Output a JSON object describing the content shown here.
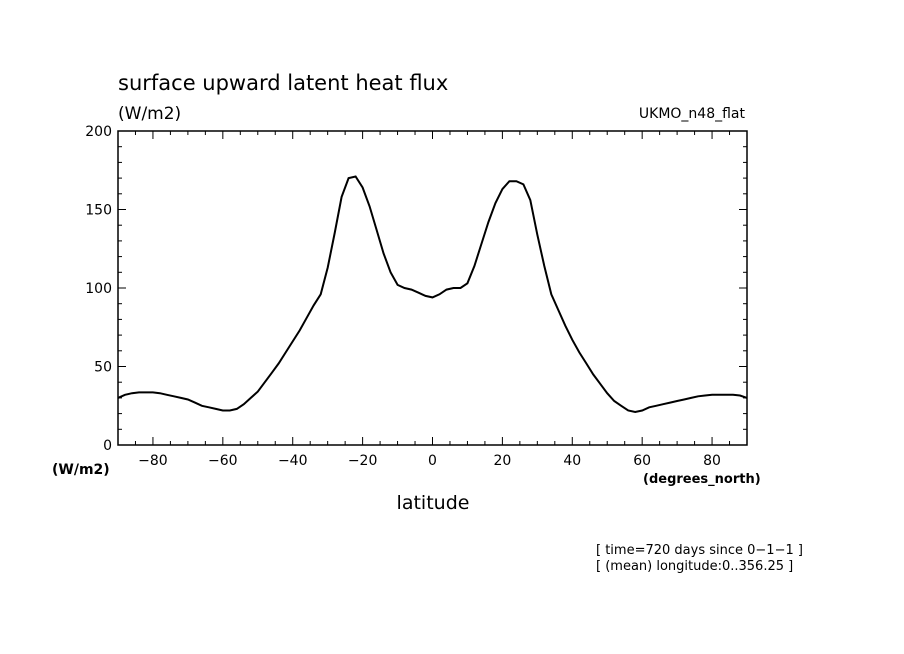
{
  "chart_data": {
    "type": "line",
    "title": "surface upward latent heat flux",
    "units_label": "(W/m2)",
    "model_label": "UKMO_n48_flat",
    "xlabel": "latitude",
    "x_units": "(degrees_north)",
    "y_units": "(W/m2)",
    "xlim": [
      -90,
      90
    ],
    "ylim": [
      0,
      200
    ],
    "x_ticks": [
      -80,
      -60,
      -40,
      -20,
      0,
      20,
      40,
      60,
      80
    ],
    "x_tick_labels": [
      "−80",
      "−60",
      "−40",
      "−20",
      "0",
      "20",
      "40",
      "60",
      "80"
    ],
    "y_ticks": [
      0,
      50,
      100,
      150,
      200
    ],
    "y_tick_labels": [
      "0",
      "50",
      "100",
      "150",
      "200"
    ],
    "grid": false,
    "line_color": "#000000",
    "annotations": [
      "[ time=720 days since 0−1−1 ]",
      "[ (mean) longitude:0..356.25 ]"
    ],
    "series": [
      {
        "x": [
          -90,
          -88,
          -86,
          -84,
          -82,
          -80,
          -78,
          -76,
          -74,
          -72,
          -70,
          -68,
          -66,
          -64,
          -62,
          -60,
          -58,
          -56,
          -54,
          -52,
          -50,
          -48,
          -46,
          -44,
          -42,
          -40,
          -38,
          -36,
          -34,
          -32,
          -30,
          -28,
          -26,
          -24,
          -22,
          -20,
          -18,
          -16,
          -14,
          -12,
          -10,
          -8,
          -6,
          -4,
          -2,
          0,
          2,
          4,
          6,
          8,
          10,
          12,
          14,
          16,
          18,
          20,
          22,
          24,
          26,
          28,
          30,
          32,
          34,
          36,
          38,
          40,
          42,
          44,
          46,
          48,
          50,
          52,
          54,
          56,
          58,
          60,
          62,
          64,
          66,
          68,
          70,
          72,
          74,
          76,
          78,
          80,
          82,
          84,
          86,
          88,
          90
        ],
        "values": [
          30,
          32,
          33,
          33.5,
          33.5,
          33.5,
          33,
          32,
          31,
          30,
          29,
          27,
          25,
          24,
          23,
          22,
          22,
          23,
          26,
          30,
          34,
          40,
          46,
          52,
          59,
          66,
          73,
          81,
          89,
          96,
          113,
          135,
          158,
          170,
          171,
          164,
          152,
          137,
          122,
          110,
          102,
          100,
          99,
          97,
          95,
          94,
          96,
          99,
          100,
          100,
          103,
          114,
          128,
          142,
          154,
          163,
          168,
          168,
          166,
          156,
          134,
          114,
          96,
          86,
          76,
          67,
          59,
          52,
          45,
          39,
          33,
          28,
          25,
          22,
          21,
          22,
          24,
          25,
          26,
          27,
          28,
          29,
          30,
          31,
          31.5,
          32,
          32,
          32,
          32,
          31.5,
          30
        ]
      }
    ]
  }
}
